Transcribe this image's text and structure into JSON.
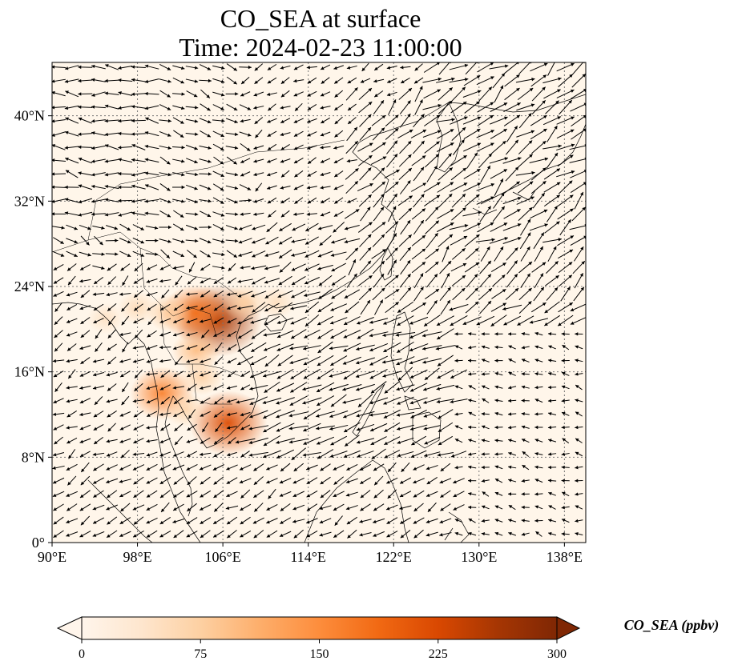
{
  "figure": {
    "title_line1": "CO_SEA at surface",
    "title_line2": "Time: 2024-02-23 11:00:00"
  },
  "map": {
    "lon_ticks": [
      "90°E",
      "98°E",
      "106°E",
      "114°E",
      "122°E",
      "130°E",
      "138°E"
    ],
    "lat_ticks": [
      "0°",
      "8°N",
      "16°N",
      "24°N",
      "32°N",
      "40°N"
    ],
    "lon_values": [
      90,
      98,
      106,
      114,
      122,
      130,
      138
    ],
    "lat_values": [
      0,
      8,
      16,
      24,
      32,
      40
    ],
    "lon_range": [
      90,
      140
    ],
    "lat_range": [
      0,
      45
    ],
    "gridlines": true,
    "background_color": "#fff6ea",
    "vector_color": "#000000",
    "coastline_color": "#000000",
    "hotspots": [
      {
        "lon": 105.6,
        "lat": 20.8,
        "value": 260
      },
      {
        "lon": 103.5,
        "lat": 21.5,
        "value": 180
      },
      {
        "lon": 106.5,
        "lat": 11.2,
        "value": 220
      },
      {
        "lon": 100.3,
        "lat": 14.0,
        "value": 160
      },
      {
        "lon": 103.5,
        "lat": 18.0,
        "value": 95
      },
      {
        "lon": 101.0,
        "lat": 21.5,
        "value": 80
      },
      {
        "lon": 108.0,
        "lat": 22.5,
        "value": 75
      },
      {
        "lon": 104.0,
        "lat": 15.5,
        "value": 70
      },
      {
        "lon": 98.0,
        "lat": 22.0,
        "value": 55
      },
      {
        "lon": 95.0,
        "lat": 21.0,
        "value": 45
      },
      {
        "lon": 102.5,
        "lat": 12.5,
        "value": 65
      },
      {
        "lon": 111.0,
        "lat": 22.5,
        "value": 50
      }
    ]
  },
  "colorbar": {
    "label": "CO_SEA (ppbv)",
    "min": 0,
    "max": 300,
    "ticks": [
      "0",
      "75",
      "150",
      "225",
      "300"
    ],
    "tick_values": [
      0,
      75,
      150,
      225,
      300
    ],
    "colors": [
      "#fff5eb",
      "#fee6ce",
      "#fdd0a2",
      "#fdae6b",
      "#fd8d3c",
      "#f16913",
      "#d94801",
      "#a63603",
      "#7f2704"
    ]
  }
}
